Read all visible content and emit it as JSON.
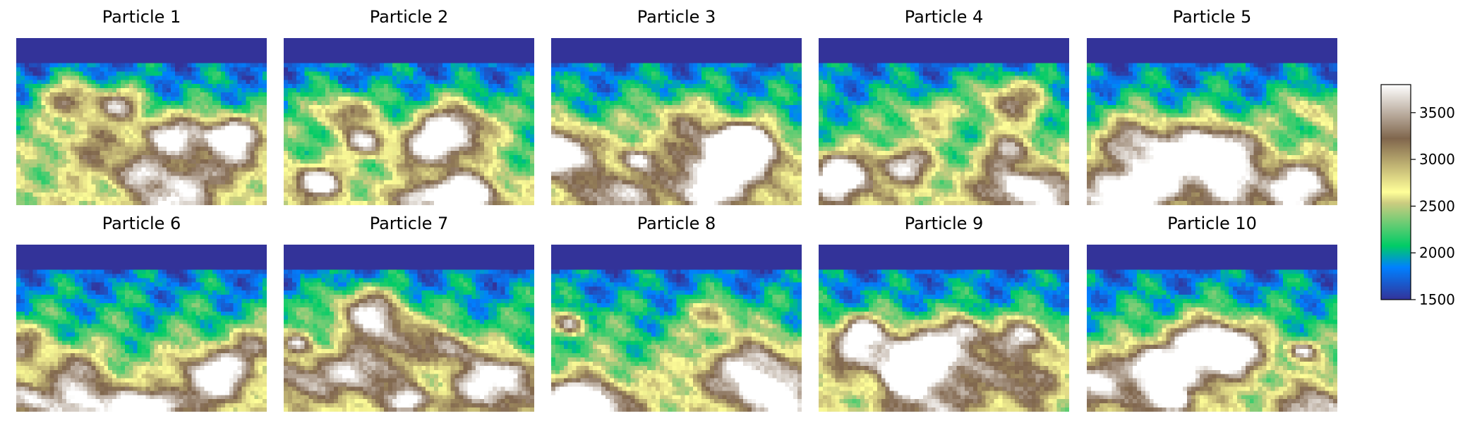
{
  "chart_data": {
    "type": "heatmap",
    "panels": [
      {
        "title": "Particle 1"
      },
      {
        "title": "Particle 2"
      },
      {
        "title": "Particle 3"
      },
      {
        "title": "Particle 4"
      },
      {
        "title": "Particle 5"
      },
      {
        "title": "Particle 6"
      },
      {
        "title": "Particle 7"
      },
      {
        "title": "Particle 8"
      },
      {
        "title": "Particle 9"
      },
      {
        "title": "Particle 10"
      }
    ],
    "grid": {
      "rows": 2,
      "cols": 5
    },
    "axes_visible": false,
    "colorbar": {
      "vmin": 1500,
      "vmax": 3800,
      "ticks": [
        1500,
        2000,
        2500,
        3000,
        3500
      ],
      "tick_labels": [
        "1500",
        "2000",
        "2500",
        "3000",
        "3500"
      ],
      "colormap": "terrain",
      "colormap_stops": [
        "#333399",
        "#0080ff",
        "#00cc66",
        "#cccc80",
        "#ffff99",
        "#80664d",
        "#ffffff"
      ]
    }
  }
}
